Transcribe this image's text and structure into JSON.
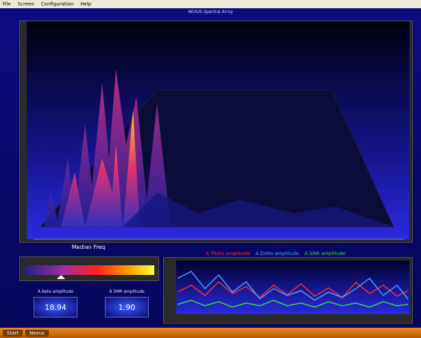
{
  "menu": [
    "File",
    "Screen",
    "Configuration",
    "Help"
  ],
  "window_title": "NEXUS Spectral Array",
  "median_freq": {
    "title": "Median Freq"
  },
  "legend": [
    {
      "name": "A Theta amplitude",
      "color": "#ff3030"
    },
    {
      "name": "A Delta amplitude",
      "color": "#4aa0ff"
    },
    {
      "name": "A SMR amplitude",
      "color": "#30e030"
    }
  ],
  "meters": [
    {
      "label": "A Beta amplitude",
      "value": "18.94"
    },
    {
      "label": "A SMR amplitude",
      "value": "1.90"
    }
  ],
  "taskbar": [
    "Start",
    "Nexus"
  ]
}
